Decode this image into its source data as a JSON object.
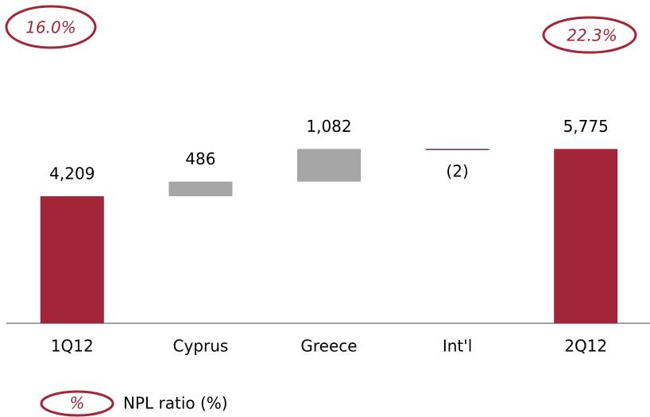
{
  "chart_data": {
    "type": "waterfall",
    "categories": [
      "1Q12",
      "Cyprus",
      "Greece",
      "Int'l",
      "2Q12"
    ],
    "values": [
      4209,
      486,
      1082,
      -2,
      5775
    ],
    "value_labels": [
      "4,209",
      "486",
      "1,082",
      "(2)",
      "5,775"
    ],
    "is_total": [
      true,
      false,
      false,
      false,
      true
    ],
    "total_color": "#a32638",
    "increase_color": "#a6a6a6",
    "decrease_color": "#7b2a5e",
    "ylim": [
      0,
      6000
    ],
    "annotations": [
      "16.0%",
      "22.3%"
    ],
    "legend": {
      "symbol": "%",
      "label": "NPL ratio (%)"
    }
  }
}
